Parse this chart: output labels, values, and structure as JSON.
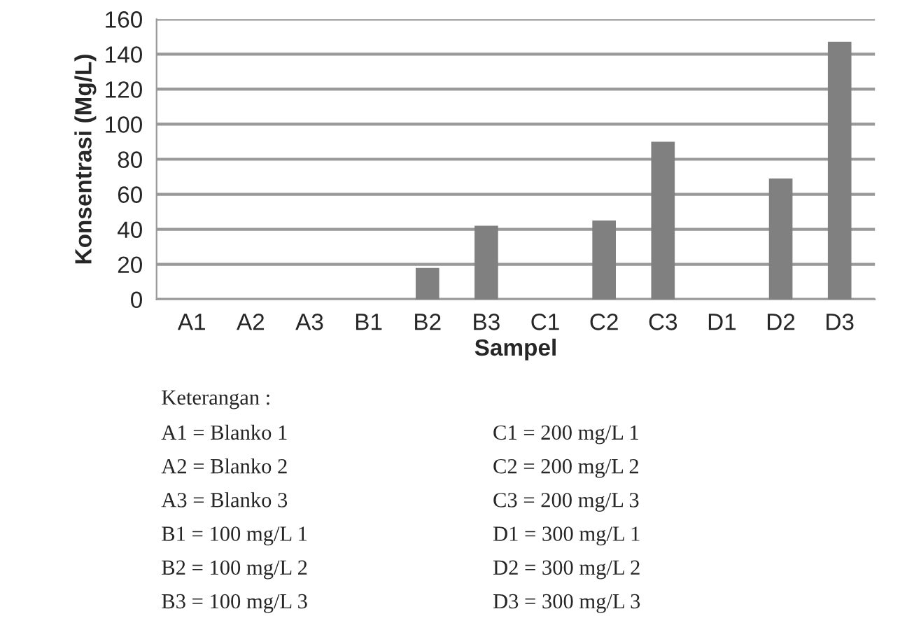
{
  "chart_data": {
    "type": "bar",
    "xlabel": "Sampel",
    "ylabel": "Konsentrasi (Mg/L)",
    "categories": [
      "A1",
      "A2",
      "A3",
      "B1",
      "B2",
      "B3",
      "C1",
      "C2",
      "C3",
      "D1",
      "D2",
      "D3"
    ],
    "values": [
      0,
      0,
      0,
      0,
      18,
      42,
      0,
      45,
      90,
      0,
      69,
      147
    ],
    "color": "#808080",
    "ylim": [
      0,
      160
    ],
    "yticks": [
      0,
      20,
      40,
      60,
      80,
      100,
      120,
      140,
      160
    ],
    "grid": "y",
    "annotations": [
      "Keterangan :",
      "A1 = Blanko 1",
      "A2 = Blanko 2",
      "A3 = Blanko 3",
      "B1 = 100 mg/L 1",
      "B2 = 100 mg/L 2",
      "B3 = 100 mg/L 3",
      "C1 = 200 mg/L 1",
      "C2 = 200 mg/L 2",
      "C3 = 200 mg/L 3",
      "D1 = 300 mg/L 1",
      "D2 = 300 mg/L 2",
      "D3 = 300 mg/L 3"
    ]
  }
}
